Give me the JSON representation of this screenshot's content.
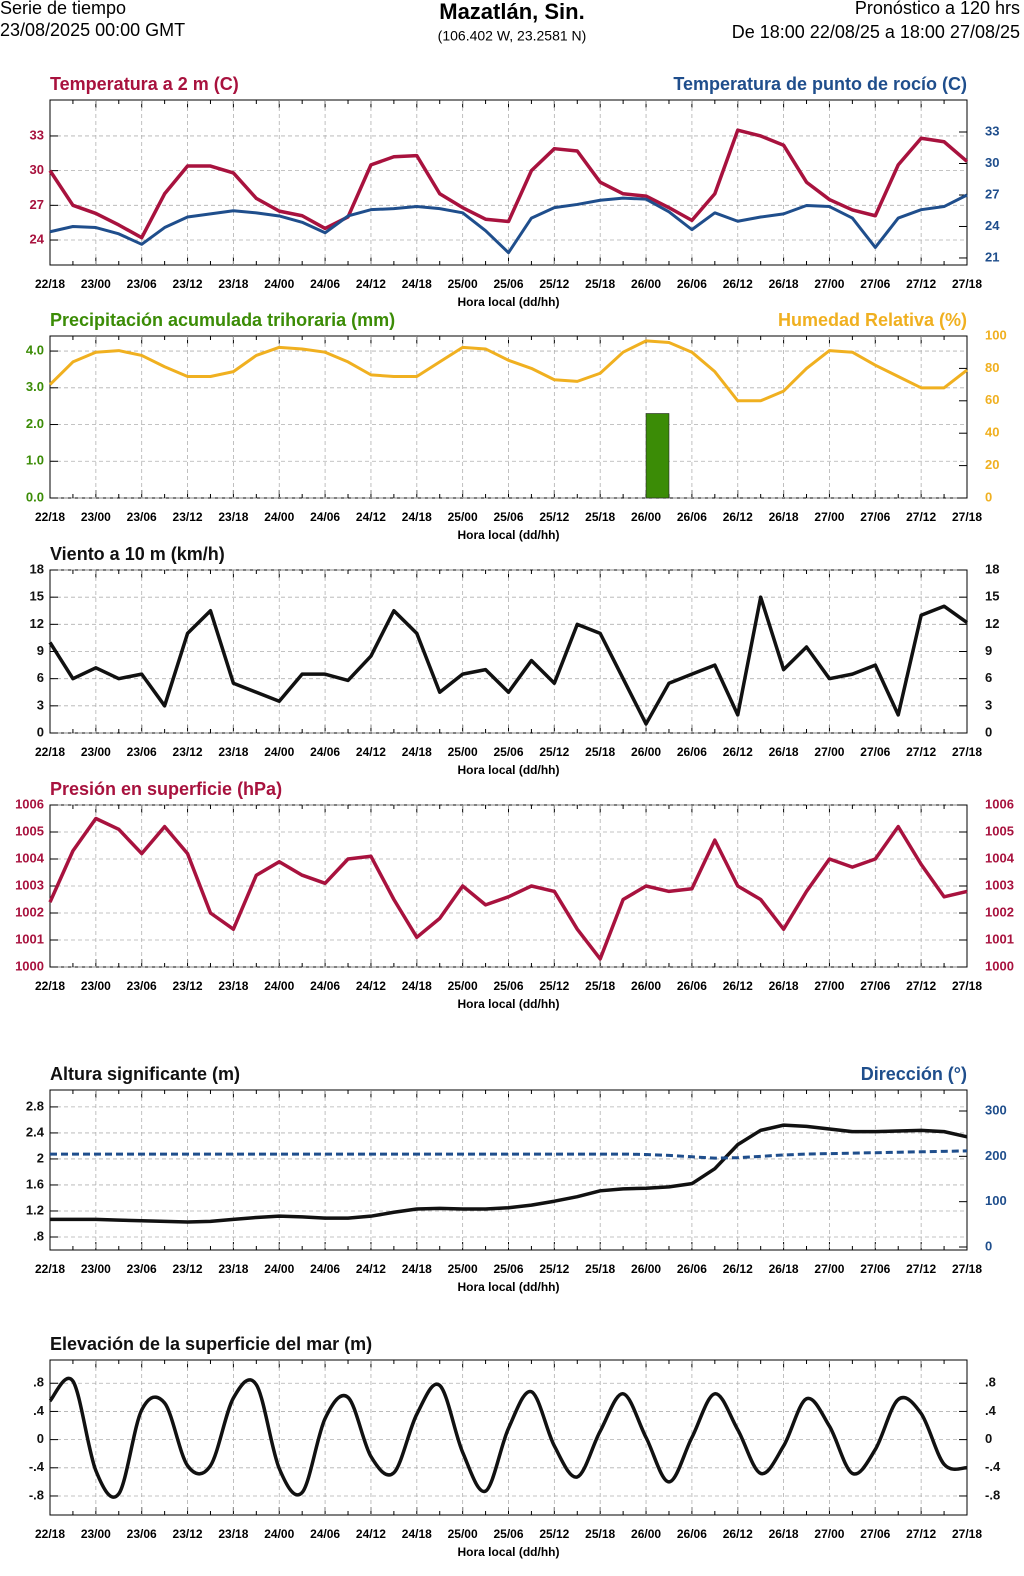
{
  "header": {
    "left_line1": "Serie de tiempo",
    "left_line2": "23/08/2025 00:00 GMT",
    "place": "Mazatlán, Sin.",
    "coords": "(106.402 W, 23.2581 N)",
    "right_line1": "Pronóstico a 120 hrs",
    "right_line2": "De 18:00 22/08/25 a 18:00 27/08/25"
  },
  "chart_data": [
    {
      "type": "line",
      "xlabel": "Hora local (dd/hh)",
      "grid": true,
      "categories": [
        "22/18",
        null,
        "23/00",
        null,
        "23/06",
        null,
        "23/12",
        null,
        "23/18",
        null,
        "24/00",
        null,
        "24/06",
        null,
        "24/12",
        null,
        "24/18",
        null,
        "25/00",
        null,
        "25/06",
        null,
        "25/12",
        null,
        "25/18",
        null,
        "26/00",
        null,
        "26/06",
        null,
        "26/12",
        null,
        "26/18",
        null,
        "27/00",
        null,
        "27/06",
        null,
        "27/12",
        null,
        "27/18"
      ],
      "ylim": [
        21.84,
        36.11
      ],
      "yticks": [
        24,
        27,
        30,
        33
      ],
      "y2lim": [
        20.33,
        36.05
      ],
      "y2ticks": [
        21,
        24,
        27,
        30,
        33
      ],
      "series": [
        {
          "name": "Temperatura a 2 m (C)",
          "color": "#a8123e",
          "values": [
            30,
            27,
            26.3,
            25.3,
            24.2,
            28.0,
            30.4,
            30.4,
            29.8,
            27.6,
            26.5,
            26.1,
            25.0,
            26.0,
            30.5,
            31.2,
            31.3,
            28.0,
            26.8,
            25.8,
            25.6,
            30.0,
            31.9,
            31.7,
            29.0,
            28.0,
            27.8,
            26.8,
            25.7,
            28.0,
            33.5,
            33.0,
            32.2,
            29.0,
            27.5,
            26.6,
            26.1,
            30.5,
            32.8,
            32.5,
            30.8
          ]
        },
        {
          "name": "Temperatura de punto de rocío (C)",
          "color": "#1f4e8c",
          "axis": "y2",
          "values": [
            23.5,
            24.0,
            23.9,
            23.3,
            22.3,
            23.9,
            24.9,
            25.2,
            25.5,
            25.3,
            25.0,
            24.4,
            23.4,
            25.0,
            25.6,
            25.7,
            25.9,
            25.7,
            25.3,
            23.6,
            21.5,
            24.8,
            25.8,
            26.1,
            26.5,
            26.7,
            26.6,
            25.4,
            23.7,
            25.3,
            24.5,
            24.9,
            25.2,
            26.0,
            25.9,
            24.8,
            22.0,
            24.8,
            25.6,
            25.9,
            27.0
          ]
        }
      ]
    },
    {
      "type": "line",
      "xlabel": "Hora local (dd/hh)",
      "grid": true,
      "categories": [
        "22/18",
        null,
        "23/00",
        null,
        "23/06",
        null,
        "23/12",
        null,
        "23/18",
        null,
        "24/00",
        null,
        "24/06",
        null,
        "24/12",
        null,
        "24/18",
        null,
        "25/00",
        null,
        "25/06",
        null,
        "25/12",
        null,
        "25/18",
        null,
        "26/00",
        null,
        "26/06",
        null,
        "26/12",
        null,
        "26/18",
        null,
        "27/00",
        null,
        "27/06",
        null,
        "27/12",
        null,
        "27/18"
      ],
      "ylim": [
        0,
        4.41
      ],
      "yticks": [
        {
          "value": 0,
          "label": "0.0"
        },
        {
          "value": 1,
          "label": "1.0"
        },
        {
          "value": 2,
          "label": "2.0"
        },
        {
          "value": 3,
          "label": "3.0"
        },
        {
          "value": 4,
          "label": "4.0"
        }
      ],
      "y2lim": [
        0,
        100
      ],
      "y2ticks": [
        0,
        20,
        40,
        60,
        80,
        100
      ],
      "series": [
        {
          "name": "Precipitación acumulada trihoraria (mm)",
          "color": "#3b8c06",
          "type": "bar",
          "values": [
            null,
            0,
            0,
            0,
            0,
            0,
            0,
            0,
            0,
            0,
            0,
            0,
            0,
            0,
            0,
            0,
            0,
            0,
            0,
            0,
            0,
            0,
            0,
            0,
            0,
            0,
            0,
            2.3,
            0,
            0,
            0,
            0,
            0,
            0,
            0,
            0,
            0,
            0,
            0,
            0,
            0
          ]
        },
        {
          "name": "Humedad Relativa (%)",
          "color": "#f0b020",
          "axis": "y2",
          "values": [
            70,
            84,
            90,
            91,
            88,
            81,
            75,
            75,
            78,
            88,
            93,
            92,
            90,
            84,
            76,
            75,
            75,
            84,
            93,
            92,
            85,
            80,
            73,
            72,
            77,
            90,
            97,
            96,
            90,
            78,
            60,
            60,
            66,
            80,
            91,
            90,
            82,
            75,
            68,
            68,
            79
          ]
        }
      ]
    },
    {
      "type": "line",
      "xlabel": "Hora local (dd/hh)",
      "grid": true,
      "mirror_yticks": true,
      "categories": [
        "22/18",
        null,
        "23/00",
        null,
        "23/06",
        null,
        "23/12",
        null,
        "23/18",
        null,
        "24/00",
        null,
        "24/06",
        null,
        "24/12",
        null,
        "24/18",
        null,
        "25/00",
        null,
        "25/06",
        null,
        "25/12",
        null,
        "25/18",
        null,
        "26/00",
        null,
        "26/06",
        null,
        "26/12",
        null,
        "26/18",
        null,
        "27/00",
        null,
        "27/06",
        null,
        "27/12",
        null,
        "27/18"
      ],
      "ylim": [
        0,
        18
      ],
      "yticks": [
        0,
        3,
        6,
        9,
        12,
        15,
        18
      ],
      "series": [
        {
          "name": "Viento a 10 m (km/h)",
          "color": "#111111",
          "values": [
            10,
            6,
            7.2,
            6,
            6.5,
            3,
            11,
            13.5,
            5.5,
            4.5,
            3.5,
            6.5,
            6.5,
            5.8,
            8.5,
            13.5,
            11,
            4.5,
            6.5,
            7,
            4.5,
            8,
            5.5,
            12,
            11,
            6,
            1,
            5.5,
            6.5,
            7.5,
            2,
            15,
            7,
            9.5,
            6,
            6.5,
            7.5,
            2,
            13,
            14,
            12.2
          ]
        }
      ]
    },
    {
      "type": "line",
      "xlabel": "Hora local (dd/hh)",
      "grid": true,
      "mirror_yticks": true,
      "categories": [
        "22/18",
        null,
        "23/00",
        null,
        "23/06",
        null,
        "23/12",
        null,
        "23/18",
        null,
        "24/00",
        null,
        "24/06",
        null,
        "24/12",
        null,
        "24/18",
        null,
        "25/00",
        null,
        "25/06",
        null,
        "25/12",
        null,
        "25/18",
        null,
        "26/00",
        null,
        "26/06",
        null,
        "26/12",
        null,
        "26/18",
        null,
        "27/00",
        null,
        "27/06",
        null,
        "27/12",
        null,
        "27/18"
      ],
      "ylim": [
        1000,
        1006
      ],
      "yticks": [
        1000,
        1001,
        1002,
        1003,
        1004,
        1005,
        1006
      ],
      "series": [
        {
          "name": "Presión en superficie (hPa)",
          "color": "#a8123e",
          "values": [
            1002.4,
            1004.3,
            1005.5,
            1005.1,
            1004.2,
            1005.2,
            1004.2,
            1002.0,
            1001.4,
            1003.4,
            1003.9,
            1003.4,
            1003.1,
            1004.0,
            1004.1,
            1002.5,
            1001.1,
            1001.8,
            1003.0,
            1002.3,
            1002.6,
            1003.0,
            1002.8,
            1001.4,
            1000.3,
            1002.5,
            1003.0,
            1002.8,
            1002.9,
            1004.7,
            1003.0,
            1002.5,
            1001.4,
            1002.8,
            1004.0,
            1003.7,
            1004.0,
            1005.2,
            1003.8,
            1002.6,
            1002.8
          ]
        }
      ]
    },
    {
      "type": "line",
      "xlabel": "Hora local (dd/hh)",
      "grid": true,
      "categories": [
        "22/18",
        null,
        "23/00",
        null,
        "23/06",
        null,
        "23/12",
        null,
        "23/18",
        null,
        "24/00",
        null,
        "24/06",
        null,
        "24/12",
        null,
        "24/18",
        null,
        "25/00",
        null,
        "25/06",
        null,
        "25/12",
        null,
        "25/18",
        null,
        "26/00",
        null,
        "26/06",
        null,
        "26/12",
        null,
        "26/18",
        null,
        "27/00",
        null,
        "27/06",
        null,
        "27/12",
        null,
        "27/18"
      ],
      "ylim": [
        0.6,
        3.06
      ],
      "yticks": [
        {
          "value": 0.8,
          "label": ".8"
        },
        1.2,
        1.6,
        2,
        2.4,
        2.8
      ],
      "y2lim": [
        -6.6,
        346.3
      ],
      "y2ticks": [
        0,
        100,
        200,
        300
      ],
      "series": [
        {
          "name": "Altura significante (m)",
          "color": "#111111",
          "values": [
            1.07,
            1.07,
            1.07,
            1.06,
            1.05,
            1.04,
            1.03,
            1.04,
            1.07,
            1.1,
            1.12,
            1.11,
            1.09,
            1.09,
            1.12,
            1.18,
            1.23,
            1.24,
            1.23,
            1.23,
            1.25,
            1.29,
            1.35,
            1.42,
            1.51,
            1.54,
            1.55,
            1.57,
            1.62,
            1.85,
            2.22,
            2.44,
            2.52,
            2.5,
            2.46,
            2.42,
            2.42,
            2.43,
            2.44,
            2.42,
            2.34
          ]
        },
        {
          "name": "Dirección (°)",
          "color": "#1f4e8c",
          "axis": "y2",
          "dashed": true,
          "values": [
            205,
            205,
            205,
            205,
            205,
            205,
            205,
            205,
            205,
            205,
            205,
            205,
            205,
            205,
            205,
            205,
            205,
            205,
            205,
            205,
            205,
            205,
            205,
            205,
            205,
            205,
            204,
            202,
            199,
            196,
            197,
            200,
            203,
            205,
            206,
            207,
            208,
            209,
            210,
            211,
            212
          ]
        }
      ]
    },
    {
      "type": "line",
      "xlabel": "Hora local (dd/hh)",
      "grid": true,
      "mirror_yticks": true,
      "smooth": true,
      "categories": [
        "22/18",
        null,
        "23/00",
        null,
        "23/06",
        null,
        "23/12",
        null,
        "23/18",
        null,
        "24/00",
        null,
        "24/06",
        null,
        "24/12",
        null,
        "24/18",
        null,
        "25/00",
        null,
        "25/06",
        null,
        "25/12",
        null,
        "25/18",
        null,
        "26/00",
        null,
        "26/06",
        null,
        "26/12",
        null,
        "26/18",
        null,
        "27/00",
        null,
        "27/06",
        null,
        "27/12",
        null,
        "27/18"
      ],
      "ylim": [
        -1.07,
        1.13
      ],
      "yticks": [
        {
          "value": 0.8,
          "label": ".8"
        },
        {
          "value": 0.4,
          "label": ".4"
        },
        0,
        {
          "value": -0.4,
          "label": "-.4"
        },
        {
          "value": -0.8,
          "label": "-.8"
        }
      ],
      "series": [
        {
          "name": "Elevación de la superficie del mar (m)",
          "color": "#111111",
          "values": [
            0.55,
            0.83,
            -0.44,
            -0.77,
            0.42,
            0.52,
            -0.37,
            -0.37,
            0.59,
            0.78,
            -0.41,
            -0.75,
            0.3,
            0.6,
            -0.24,
            -0.47,
            0.36,
            0.77,
            -0.18,
            -0.73,
            0.16,
            0.68,
            -0.09,
            -0.53,
            0.12,
            0.65,
            0.03,
            -0.6,
            0.03,
            0.65,
            0.14,
            -0.48,
            -0.09,
            0.58,
            0.19,
            -0.48,
            -0.14,
            0.57,
            0.37,
            -0.35,
            -0.4
          ]
        }
      ]
    }
  ]
}
